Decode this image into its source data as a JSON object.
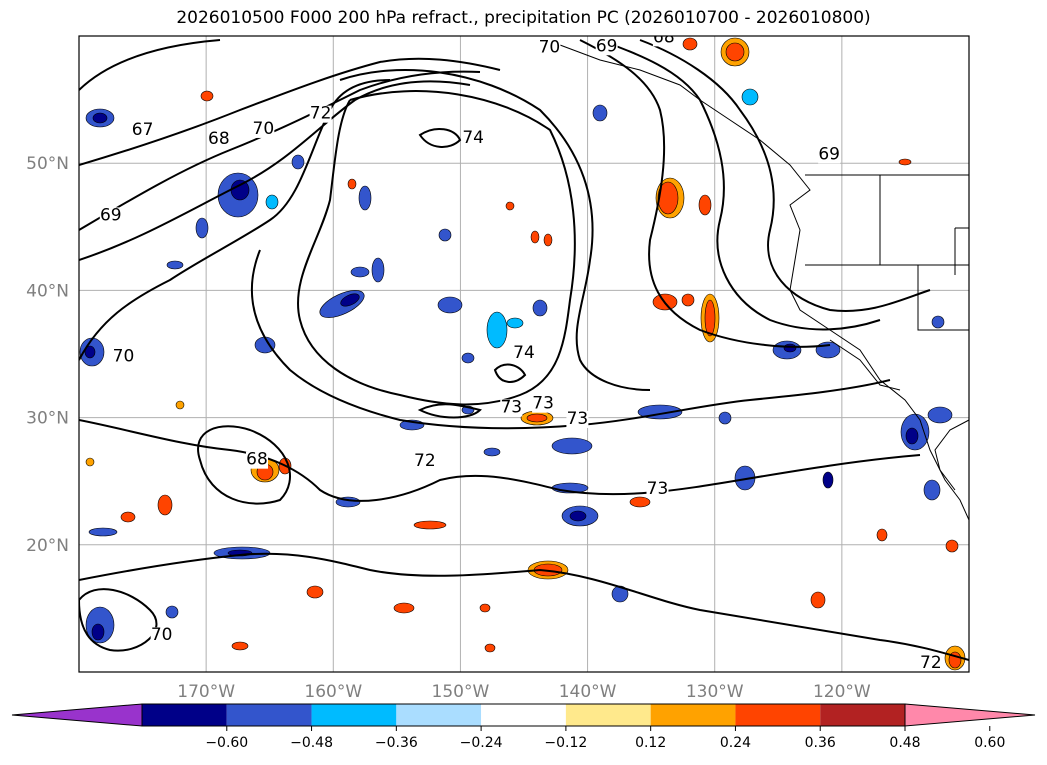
{
  "title": "2026010500 F000 200 hPa refract., precipitation PC (2026010700 - 2026010800)",
  "map": {
    "projection": "plate-carree",
    "lon_range": [
      -180,
      -110
    ],
    "lat_range": [
      10,
      60
    ],
    "lon_ticks": [
      {
        "value": -170,
        "label": "170°W"
      },
      {
        "value": -160,
        "label": "160°W"
      },
      {
        "value": -150,
        "label": "150°W"
      },
      {
        "value": -140,
        "label": "140°W"
      },
      {
        "value": -130,
        "label": "130°W"
      },
      {
        "value": -120,
        "label": "120°W"
      }
    ],
    "lat_ticks": [
      {
        "value": 20,
        "label": "20°N"
      },
      {
        "value": 30,
        "label": "30°N"
      },
      {
        "value": 40,
        "label": "40°N"
      },
      {
        "value": 50,
        "label": "50°N"
      }
    ],
    "grid": true,
    "contour_labels": [
      {
        "text": "67",
        "lon": -175,
        "lat": 52.2
      },
      {
        "text": "68",
        "lon": -169,
        "lat": 51.5
      },
      {
        "text": "70",
        "lon": -165.5,
        "lat": 52.3
      },
      {
        "text": "72",
        "lon": -161,
        "lat": 53.5
      },
      {
        "text": "74",
        "lon": -149,
        "lat": 51.6
      },
      {
        "text": "70",
        "lon": -143,
        "lat": 58.7
      },
      {
        "text": "69",
        "lon": -138.5,
        "lat": 58.8
      },
      {
        "text": "68",
        "lon": -134,
        "lat": 59.5
      },
      {
        "text": "69",
        "lon": -121,
        "lat": 50.3
      },
      {
        "text": "69",
        "lon": -177.5,
        "lat": 45.5
      },
      {
        "text": "70",
        "lon": -176.5,
        "lat": 34.4
      },
      {
        "text": "74",
        "lon": -145,
        "lat": 34.7
      },
      {
        "text": "73",
        "lon": -146,
        "lat": 30.4
      },
      {
        "text": "73",
        "lon": -143.5,
        "lat": 30.7
      },
      {
        "text": "73",
        "lon": -140.8,
        "lat": 29.5
      },
      {
        "text": "72",
        "lon": -152.8,
        "lat": 26.2
      },
      {
        "text": "73",
        "lon": -134.5,
        "lat": 24
      },
      {
        "text": "68",
        "lon": -166,
        "lat": 26.3
      },
      {
        "text": "70",
        "lon": -173.5,
        "lat": 12.5
      },
      {
        "text": "72",
        "lon": -113,
        "lat": 10.3
      }
    ]
  },
  "colorbar": {
    "ticks": [
      "−0.60",
      "−0.48",
      "−0.36",
      "−0.24",
      "−0.12",
      "0.12",
      "0.24",
      "0.36",
      "0.48",
      "0.60"
    ],
    "colors": [
      "#9933cc",
      "#000088",
      "#3355cc",
      "#00bbff",
      "#aaddff",
      "#ffffff",
      "#ffe98c",
      "#ffa200",
      "#ff4400",
      "#b22222",
      "#ff88aa"
    ]
  }
}
